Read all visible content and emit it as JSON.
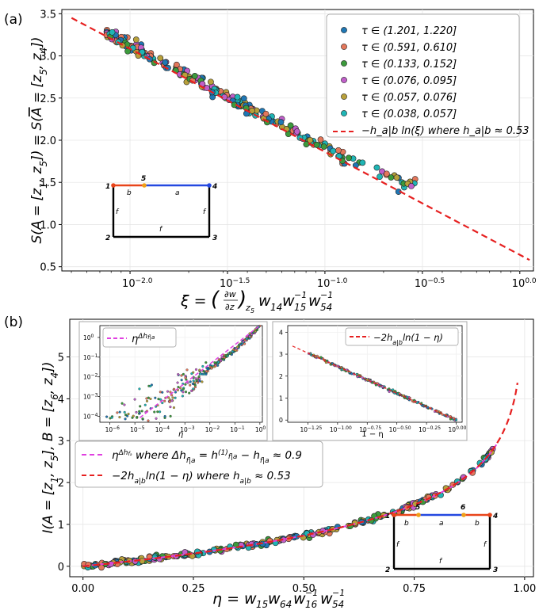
{
  "chart_data": [
    {
      "type": "scatter",
      "panel_label": "(a)",
      "xscale": "log",
      "xlim_log10": [
        -2.35,
        0.07
      ],
      "ylim": [
        0.45,
        3.55
      ],
      "x_ticks": [
        {
          "pow": -2.0,
          "label_base": "10",
          "label_exp": "−2.0"
        },
        {
          "pow": -1.5,
          "label_base": "10",
          "label_exp": "−1.5"
        },
        {
          "pow": -1.0,
          "label_base": "10",
          "label_exp": "−1.0"
        },
        {
          "pow": -0.5,
          "label_base": "10",
          "label_exp": "−0.5"
        },
        {
          "pow": 0.0,
          "label_base": "10",
          "label_exp": "0.0"
        }
      ],
      "y_ticks": [
        0.5,
        1.0,
        1.5,
        2.0,
        2.5,
        3.0,
        3.5
      ],
      "ylabel": "S(A = [z₁, z₅]) = S(Ā = [z₅, z₄])",
      "xlabel": "ξ = (∂w/∂z)_z₅ w₁₄ w₁₅⁻¹ w₅₄⁻¹",
      "grid": true,
      "legend_placement": "top-right",
      "legend": [
        {
          "label": "τ ∈ (1.201, 1.220]",
          "color": "#1f77b4"
        },
        {
          "label": "τ ∈ (0.591, 0.610]",
          "color": "#e3775b"
        },
        {
          "label": "τ ∈ (0.133, 0.152]",
          "color": "#3c9a3c"
        },
        {
          "label": "τ ∈ (0.076, 0.095]",
          "color": "#c05ec9"
        },
        {
          "label": "τ ∈ (0.057, 0.076]",
          "color": "#b8a03a"
        },
        {
          "label": "τ ∈ (0.038, 0.057]",
          "color": "#1fb5b5"
        },
        {
          "label": "−h_a|b ln(ξ) where h_a|b ≈ 0.53",
          "color": "#e62020",
          "style": "dashed"
        }
      ],
      "fit_line": {
        "log10_x": [
          -2.3,
          0.05
        ],
        "y": [
          3.45,
          0.58
        ],
        "color": "#e62020"
      },
      "scatter_band": {
        "log10_x_range": [
          -2.12,
          -0.52
        ],
        "y_range": [
          3.2,
          1.43
        ],
        "count": 240,
        "spread": 0.035
      },
      "inset_diagram": {
        "points": [
          "1",
          "5",
          "4",
          "2",
          "3"
        ],
        "segment_labels": [
          "b",
          "a",
          "f",
          "f",
          "f"
        ],
        "colors": {
          "b": "#e8441a",
          "a": "#2448e0",
          "marker": "#f0a018",
          "f": "#000000"
        }
      }
    },
    {
      "type": "scatter",
      "panel_label": "(b)",
      "xlim": [
        -0.03,
        1.02
      ],
      "ylim": [
        -0.25,
        5.9
      ],
      "x_ticks": [
        "0.00",
        "0.25",
        "0.50",
        "0.75",
        "1.00"
      ],
      "y_ticks": [
        0,
        1,
        2,
        3,
        4,
        5
      ],
      "ylabel": "I(A = [z₁, z₅], B = [z₆, z₄])",
      "xlabel": "η = w₁₅ w₆₄ w₁₆⁻¹ w₅₄⁻¹",
      "grid": true,
      "legend_placement": "middle-left",
      "legend": [
        {
          "label": "η^Δh_f|a where Δh_f|a = h⁽¹⁾_f|a − h_f|a ≈ 0.9",
          "color": "#e040e0",
          "style": "dashed"
        },
        {
          "label": "−2h_a|b ln(1 − η) where h_a|b ≈ 0.53",
          "color": "#e62020",
          "style": "dashed"
        }
      ],
      "fit_line_formula": "-2*0.53*ln(1-x)",
      "scatter_band": {
        "x_range": [
          0.0,
          0.94
        ],
        "count": 260
      },
      "insets": [
        {
          "type": "scatter",
          "xscale": "log",
          "yscale": "log",
          "x_ticks_exp": [
            "−6",
            "−5",
            "−4",
            "−3",
            "−2",
            "−1",
            "0"
          ],
          "y_ticks_exp": [
            "−4",
            "−3",
            "−2",
            "−1",
            "0"
          ],
          "xlabel": "η",
          "legend": [
            {
              "label": "η^Δh_f|a",
              "color": "#e040e0"
            }
          ]
        },
        {
          "type": "scatter",
          "xscale": "log",
          "x_ticks_exp": [
            "−1.25",
            "−1.00",
            "−0.75",
            "−0.50",
            "−0.25",
            "0.00"
          ],
          "y_ticks": [
            0,
            1,
            2,
            3,
            4
          ],
          "xlabel": "1 − η",
          "legend": [
            {
              "label": "−2h_a|b ln(1 − η)",
              "color": "#e62020"
            }
          ]
        }
      ],
      "inset_diagram": {
        "points": [
          "1",
          "5",
          "6",
          "4",
          "2",
          "3"
        ],
        "segment_labels": [
          "b",
          "a",
          "b",
          "f",
          "f",
          "f"
        ]
      }
    }
  ]
}
